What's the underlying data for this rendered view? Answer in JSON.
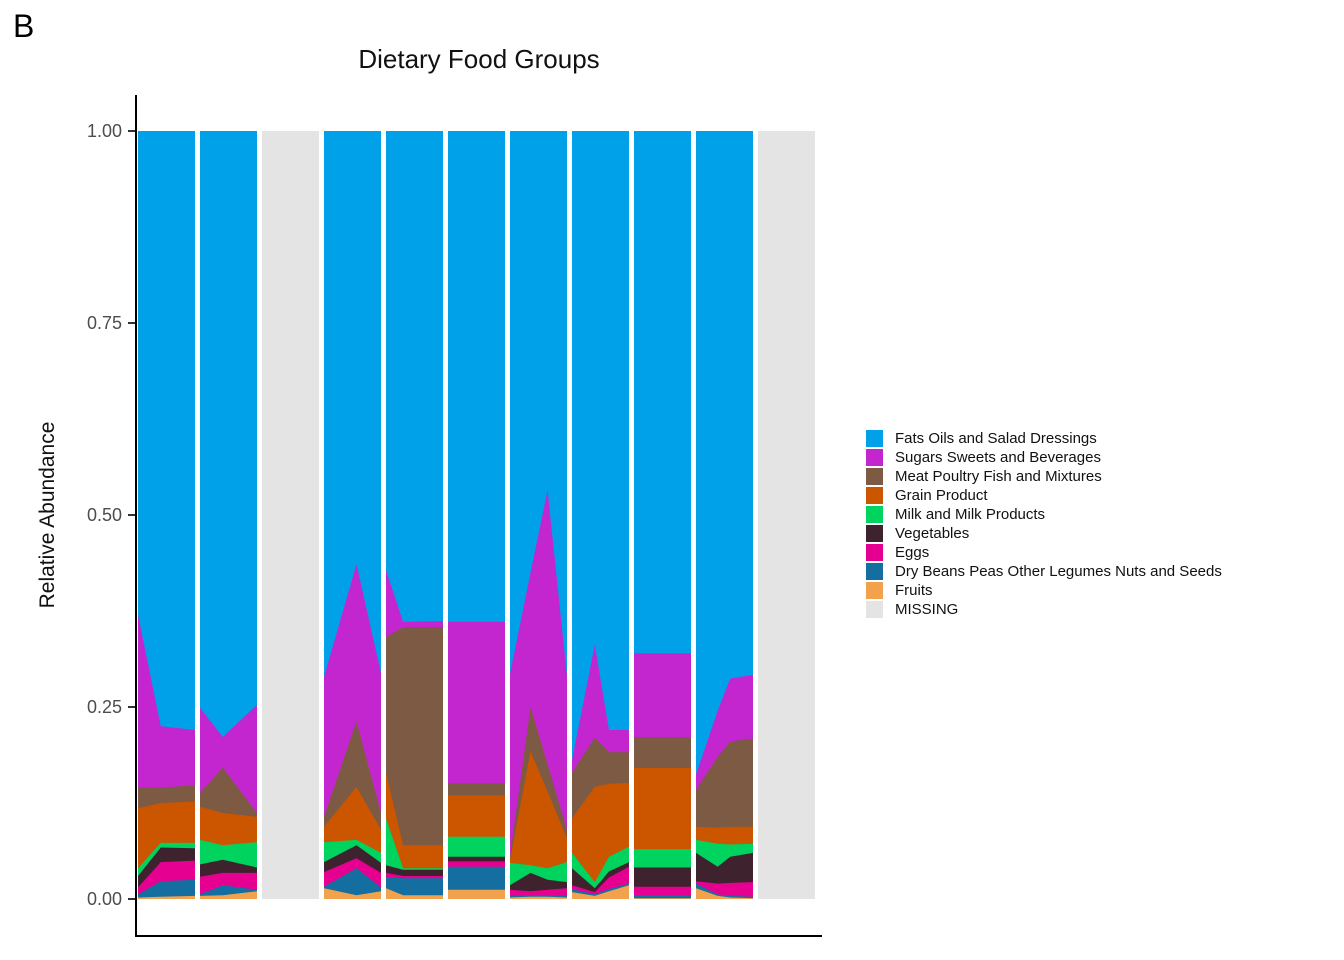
{
  "figure": {
    "panel_label": "B"
  },
  "chart_data": {
    "type": "area",
    "title": "Dietary Food Groups",
    "ylabel": "Relative Abundance",
    "xlabel": "",
    "ylim": [
      0,
      1
    ],
    "grid": false,
    "legend_position": "right",
    "note": "Normalized stacked area chart; 11 sample columns, columns 3 and 11 are MISSING (gray). Values are cumulative stacked tops (bottom-to-top order: Fruits, Dry Beans, Eggs, Vegetables, Milk, Grain, Meat, Sugars, Fats).",
    "yticks": [
      {
        "label": "1.00",
        "value": 1.0
      },
      {
        "label": "0.75",
        "value": 0.75
      },
      {
        "label": "0.50",
        "value": 0.5
      },
      {
        "label": "0.25",
        "value": 0.25
      },
      {
        "label": "0.00",
        "value": 0.0
      }
    ],
    "legend": [
      {
        "label": "Fats Oils and Salad Dressings",
        "color": "#00A1E8"
      },
      {
        "label": "Sugars Sweets and Beverages",
        "color": "#C326CF"
      },
      {
        "label": "Meat Poultry Fish and Mixtures",
        "color": "#7D5A43"
      },
      {
        "label": "Grain Product",
        "color": "#CC5500"
      },
      {
        "label": "Milk and Milk Products",
        "color": "#00D35E"
      },
      {
        "label": "Vegetables",
        "color": "#3E232E"
      },
      {
        "label": "Eggs",
        "color": "#E50092"
      },
      {
        "label": "Dry Beans Peas Other Legumes Nuts and Seeds",
        "color": "#146FA0"
      },
      {
        "label": "Fruits",
        "color": "#F2A24D"
      },
      {
        "label": "MISSING",
        "color": "#E4E4E4"
      }
    ],
    "columns": [
      {
        "missing": false,
        "points": [
          {
            "x": 0.0,
            "tops": [
              0.002,
              0.006,
              0.015,
              0.03,
              0.04,
              0.118,
              0.145,
              0.37,
              1
            ]
          },
          {
            "x": 0.4,
            "tops": [
              0.003,
              0.023,
              0.048,
              0.067,
              0.073,
              0.125,
              0.145,
              0.225,
              1
            ]
          },
          {
            "x": 1.0,
            "tops": [
              0.004,
              0.025,
              0.05,
              0.066,
              0.073,
              0.127,
              0.148,
              0.22,
              1
            ]
          }
        ]
      },
      {
        "missing": false,
        "points": [
          {
            "x": 0.0,
            "tops": [
              0.004,
              0.006,
              0.029,
              0.045,
              0.077,
              0.12,
              0.138,
              0.249,
              1
            ]
          },
          {
            "x": 0.4,
            "tops": [
              0.005,
              0.018,
              0.034,
              0.051,
              0.07,
              0.112,
              0.171,
              0.211,
              1
            ]
          },
          {
            "x": 1.0,
            "tops": [
              0.01,
              0.012,
              0.034,
              0.041,
              0.074,
              0.107,
              0.112,
              0.253,
              1
            ]
          }
        ]
      },
      {
        "missing": true
      },
      {
        "missing": false,
        "points": [
          {
            "x": 0.0,
            "tops": [
              0.014,
              0.016,
              0.035,
              0.048,
              0.074,
              0.094,
              0.107,
              0.289,
              1
            ]
          },
          {
            "x": 0.57,
            "tops": [
              0.005,
              0.04,
              0.053,
              0.07,
              0.077,
              0.146,
              0.231,
              0.436,
              1
            ]
          },
          {
            "x": 1.0,
            "tops": [
              0.01,
              0.015,
              0.034,
              0.047,
              0.06,
              0.09,
              0.112,
              0.294,
              1
            ]
          }
        ]
      },
      {
        "missing": false,
        "points": [
          {
            "x": 0.0,
            "tops": [
              0.014,
              0.029,
              0.034,
              0.044,
              0.105,
              0.164,
              0.341,
              0.428,
              1
            ]
          },
          {
            "x": 0.3,
            "tops": [
              0.005,
              0.027,
              0.03,
              0.038,
              0.04,
              0.07,
              0.354,
              0.361,
              1
            ]
          },
          {
            "x": 1.0,
            "tops": [
              0.005,
              0.027,
              0.03,
              0.038,
              0.04,
              0.07,
              0.354,
              0.362,
              1
            ]
          }
        ]
      },
      {
        "missing": false,
        "points": [
          {
            "x": 0.0,
            "tops": [
              0.012,
              0.042,
              0.049,
              0.055,
              0.081,
              0.135,
              0.151,
              0.361,
              1
            ]
          },
          {
            "x": 1.0,
            "tops": [
              0.012,
              0.042,
              0.049,
              0.055,
              0.081,
              0.135,
              0.151,
              0.361,
              1
            ]
          }
        ]
      },
      {
        "missing": false,
        "points": [
          {
            "x": 0.0,
            "tops": [
              0.002,
              0.004,
              0.012,
              0.018,
              0.047,
              0.051,
              0.055,
              0.293,
              1
            ]
          },
          {
            "x": 0.36,
            "tops": [
              0.003,
              0.005,
              0.01,
              0.034,
              0.044,
              0.192,
              0.25,
              0.425,
              1
            ]
          },
          {
            "x": 0.66,
            "tops": [
              0.003,
              0.005,
              0.012,
              0.025,
              0.04,
              0.14,
              0.175,
              0.532,
              1
            ]
          },
          {
            "x": 1.0,
            "tops": [
              0.002,
              0.004,
              0.014,
              0.022,
              0.048,
              0.079,
              0.09,
              0.29,
              1
            ]
          }
        ]
      },
      {
        "missing": false,
        "points": [
          {
            "x": 0.0,
            "tops": [
              0.009,
              0.013,
              0.018,
              0.04,
              0.06,
              0.105,
              0.164,
              0.181,
              1
            ]
          },
          {
            "x": 0.4,
            "tops": [
              0.004,
              0.006,
              0.009,
              0.014,
              0.022,
              0.146,
              0.21,
              0.331,
              1
            ]
          },
          {
            "x": 0.65,
            "tops": [
              0.01,
              0.013,
              0.028,
              0.036,
              0.055,
              0.15,
              0.191,
              0.22,
              1
            ]
          },
          {
            "x": 1.0,
            "tops": [
              0.018,
              0.02,
              0.042,
              0.048,
              0.068,
              0.151,
              0.191,
              0.22,
              1
            ]
          }
        ]
      },
      {
        "missing": false,
        "points": [
          {
            "x": 0.0,
            "tops": [
              0.001,
              0.005,
              0.016,
              0.041,
              0.065,
              0.171,
              0.211,
              0.32,
              1
            ]
          },
          {
            "x": 1.0,
            "tops": [
              0.001,
              0.005,
              0.016,
              0.041,
              0.065,
              0.171,
              0.211,
              0.32,
              1
            ]
          }
        ]
      },
      {
        "missing": false,
        "points": [
          {
            "x": 0.0,
            "tops": [
              0.014,
              0.02,
              0.023,
              0.06,
              0.077,
              0.094,
              0.142,
              0.162,
              1
            ]
          },
          {
            "x": 0.38,
            "tops": [
              0.004,
              0.006,
              0.02,
              0.042,
              0.072,
              0.093,
              0.185,
              0.245,
              1
            ]
          },
          {
            "x": 0.6,
            "tops": [
              0.002,
              0.004,
              0.021,
              0.055,
              0.071,
              0.094,
              0.205,
              0.287,
              1
            ]
          },
          {
            "x": 1.0,
            "tops": [
              0.001,
              0.003,
              0.022,
              0.06,
              0.072,
              0.094,
              0.209,
              0.292,
              1
            ]
          }
        ]
      },
      {
        "missing": true
      }
    ]
  }
}
